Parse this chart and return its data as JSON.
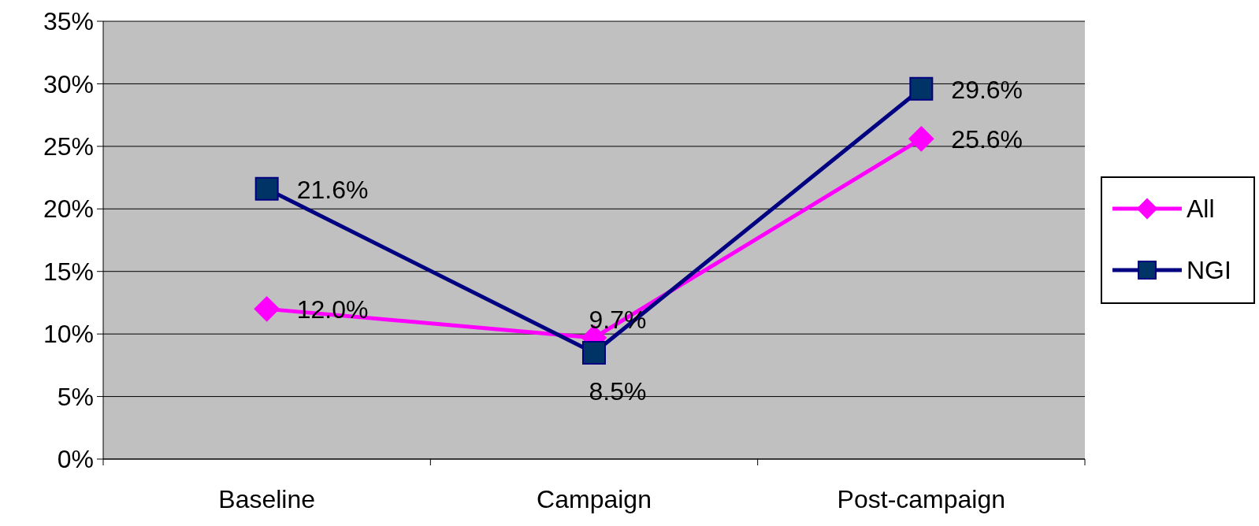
{
  "chart_data": {
    "type": "line",
    "categories": [
      "Baseline",
      "Campaign",
      "Post-campaign"
    ],
    "series": [
      {
        "name": "All",
        "color": "#ff00ff",
        "marker": "diamond",
        "values": [
          12.0,
          9.7,
          25.6
        ],
        "value_labels": [
          "12.0%",
          "9.7%",
          "25.6%"
        ]
      },
      {
        "name": "NGI",
        "color": "#000080",
        "marker": "square",
        "values": [
          21.6,
          8.5,
          29.6
        ],
        "value_labels": [
          "21.6%",
          "8.5%",
          "29.6%"
        ]
      }
    ],
    "ylim": [
      0,
      35
    ],
    "yticks": [
      {
        "value": 0,
        "label": "0%"
      },
      {
        "value": 5,
        "label": "5%"
      },
      {
        "value": 10,
        "label": "10%"
      },
      {
        "value": 15,
        "label": "15%"
      },
      {
        "value": 20,
        "label": "20%"
      },
      {
        "value": 25,
        "label": "25%"
      },
      {
        "value": 30,
        "label": "30%"
      },
      {
        "value": 35,
        "label": "35%"
      }
    ],
    "grid": "y",
    "legend": "right"
  }
}
